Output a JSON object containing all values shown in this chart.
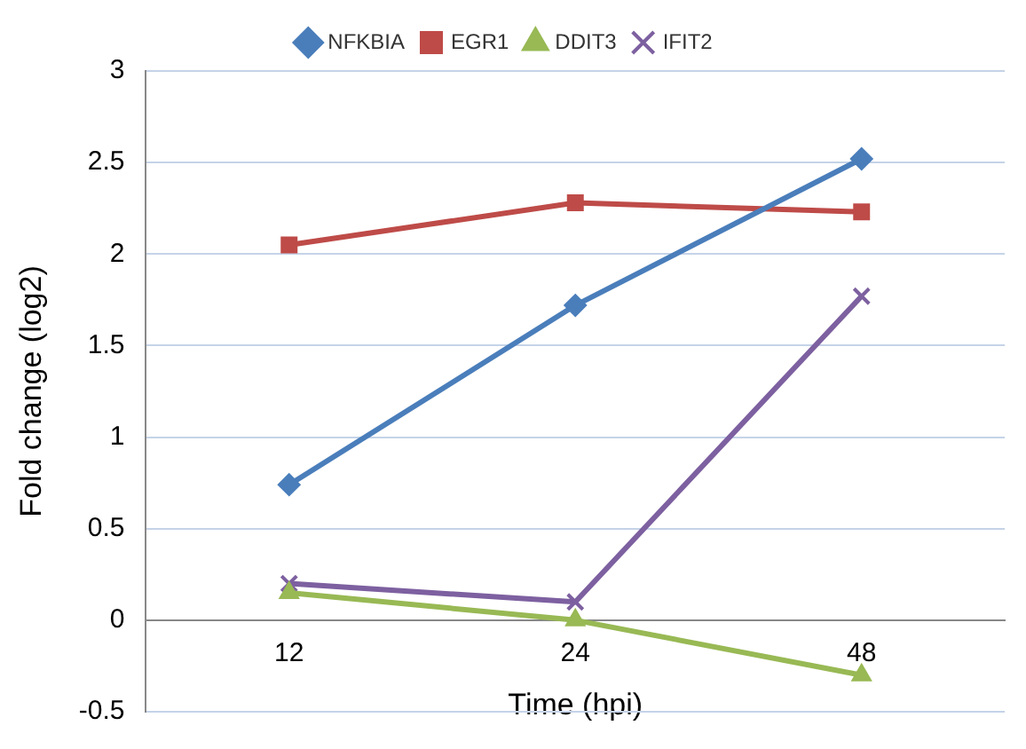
{
  "chart_data": {
    "type": "line",
    "xlabel": "Time (hpi)",
    "ylabel": "Fold change (log2)",
    "categories": [
      "12",
      "24",
      "48"
    ],
    "series": [
      {
        "name": "NFKBIA",
        "color": "#4a7ebb",
        "marker": "diamond",
        "values": [
          0.74,
          1.72,
          2.52
        ]
      },
      {
        "name": "EGR1",
        "color": "#be4b48",
        "marker": "square",
        "values": [
          2.05,
          2.28,
          2.23
        ]
      },
      {
        "name": "DDIT3",
        "color": "#98b954",
        "marker": "triangle",
        "values": [
          0.15,
          0.0,
          -0.3
        ]
      },
      {
        "name": "IFIT2",
        "color": "#7d60a0",
        "marker": "cross",
        "values": [
          0.2,
          0.1,
          1.77
        ]
      }
    ],
    "ylim": [
      -0.5,
      3
    ],
    "yticks": [
      -0.5,
      0,
      0.5,
      1,
      1.5,
      2,
      2.5,
      3
    ],
    "grid": "y",
    "legend": "top"
  }
}
